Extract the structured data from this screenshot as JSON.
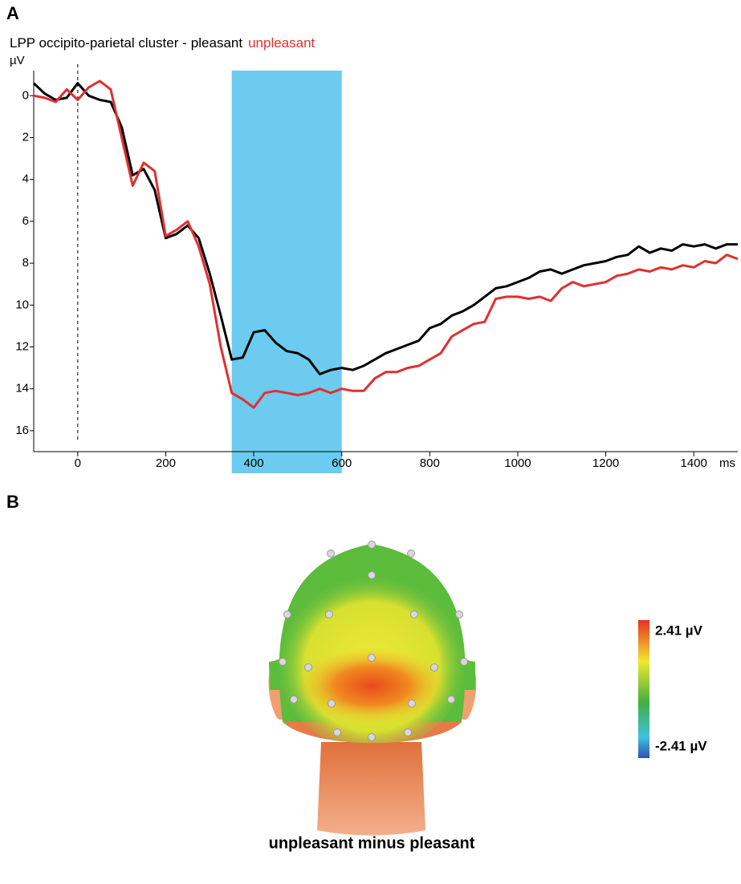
{
  "panel_labels": [
    "A",
    "B"
  ],
  "chart_data": {
    "type": "line",
    "title": "LPP occipito-parietal cluster -",
    "y_label": "µV",
    "x_label": "ms",
    "x": [
      -100,
      -75,
      -50,
      -25,
      0,
      25,
      50,
      75,
      100,
      125,
      150,
      175,
      200,
      225,
      250,
      275,
      300,
      325,
      350,
      375,
      400,
      425,
      450,
      475,
      500,
      525,
      550,
      575,
      600,
      625,
      650,
      675,
      700,
      725,
      750,
      775,
      800,
      825,
      850,
      875,
      900,
      925,
      950,
      975,
      1000,
      1025,
      1050,
      1075,
      1100,
      1125,
      1150,
      1175,
      1200,
      1225,
      1250,
      1275,
      1300,
      1325,
      1350,
      1375,
      1400,
      1425,
      1450,
      1475,
      1500
    ],
    "series": [
      {
        "name": "pleasant",
        "color": "#000000",
        "values": [
          -0.6,
          -0.1,
          0.2,
          0.1,
          -0.6,
          0.0,
          0.2,
          0.3,
          1.5,
          3.8,
          3.5,
          4.5,
          6.8,
          6.6,
          6.2,
          6.8,
          8.5,
          10.5,
          12.6,
          12.5,
          11.3,
          11.2,
          11.8,
          12.2,
          12.3,
          12.6,
          13.3,
          13.1,
          13.0,
          13.1,
          12.9,
          12.6,
          12.3,
          12.1,
          11.9,
          11.7,
          11.1,
          10.9,
          10.5,
          10.3,
          10.0,
          9.6,
          9.2,
          9.1,
          8.9,
          8.7,
          8.4,
          8.3,
          8.5,
          8.3,
          8.1,
          8.0,
          7.9,
          7.7,
          7.6,
          7.2,
          7.5,
          7.3,
          7.4,
          7.1,
          7.2,
          7.1,
          7.3,
          7.1,
          7.1
        ]
      },
      {
        "name": "unpleasant",
        "color": "#e03030",
        "values": [
          0.0,
          0.1,
          0.3,
          -0.3,
          0.2,
          -0.4,
          -0.7,
          -0.3,
          2.0,
          4.3,
          3.2,
          3.6,
          6.7,
          6.4,
          6.0,
          7.2,
          9.0,
          12.0,
          14.2,
          14.5,
          14.9,
          14.2,
          14.1,
          14.2,
          14.3,
          14.2,
          14.0,
          14.2,
          14.0,
          14.1,
          14.1,
          13.5,
          13.2,
          13.2,
          13.0,
          12.9,
          12.6,
          12.3,
          11.5,
          11.2,
          10.9,
          10.8,
          9.7,
          9.6,
          9.6,
          9.7,
          9.6,
          9.8,
          9.2,
          8.9,
          9.1,
          9.0,
          8.9,
          8.6,
          8.5,
          8.3,
          8.4,
          8.2,
          8.3,
          8.1,
          8.2,
          7.9,
          8.0,
          7.6,
          7.8
        ]
      }
    ],
    "xlim": [
      -100,
      1500
    ],
    "xticks": [
      0,
      200,
      400,
      600,
      800,
      1000,
      1200,
      1400
    ],
    "ylim": [
      -1.2,
      17
    ],
    "y_inverted": true,
    "yticks": [
      0,
      2,
      4,
      6,
      8,
      10,
      12,
      14,
      16
    ],
    "highlight": {
      "x": [
        350,
        600
      ],
      "color": "#6ccbee"
    }
  },
  "topography": {
    "caption": "unpleasant minus pleasant",
    "colorbar": {
      "lim": [
        -2.87,
        2.87
      ],
      "ticks": [
        {
          "value": 2.41,
          "label": "2.41 µV"
        },
        {
          "value": -2.41,
          "label": "-2.41 µV"
        }
      ]
    }
  }
}
